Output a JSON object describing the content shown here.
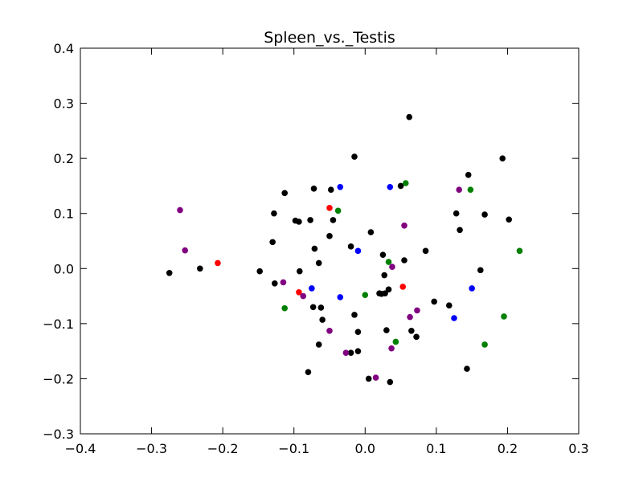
{
  "chart_data": {
    "type": "scatter",
    "title": "Spleen_vs._Testis",
    "xlabel": "",
    "ylabel": "",
    "xlim": [
      -0.4,
      0.3
    ],
    "ylim": [
      -0.3,
      0.4
    ],
    "xticks": [
      -0.4,
      -0.3,
      -0.2,
      -0.1,
      0.0,
      0.1,
      0.2,
      0.3
    ],
    "yticks": [
      -0.3,
      -0.2,
      -0.1,
      0.0,
      0.1,
      0.2,
      0.3,
      0.4
    ],
    "xtick_labels": [
      "−0.4",
      "−0.3",
      "−0.2",
      "−0.1",
      "0.0",
      "0.1",
      "0.2",
      "0.3"
    ],
    "ytick_labels": [
      "−0.3",
      "−0.2",
      "−0.1",
      "0.0",
      "0.1",
      "0.2",
      "0.3",
      "0.4"
    ],
    "grid": false,
    "legend": "none",
    "series": [
      {
        "color": "#000000",
        "points": [
          [
            0.062,
            0.275
          ],
          [
            -0.015,
            0.203
          ],
          [
            0.193,
            0.2
          ],
          [
            0.145,
            0.17
          ],
          [
            -0.113,
            0.137
          ],
          [
            -0.072,
            0.145
          ],
          [
            -0.048,
            0.143
          ],
          [
            0.05,
            0.15
          ],
          [
            -0.128,
            0.1
          ],
          [
            -0.098,
            0.087
          ],
          [
            -0.093,
            0.085
          ],
          [
            -0.077,
            0.088
          ],
          [
            -0.045,
            0.088
          ],
          [
            0.128,
            0.1
          ],
          [
            0.168,
            0.098
          ],
          [
            0.202,
            0.089
          ],
          [
            -0.13,
            0.048
          ],
          [
            -0.05,
            0.059
          ],
          [
            0.008,
            0.066
          ],
          [
            0.133,
            0.07
          ],
          [
            -0.071,
            0.036
          ],
          [
            -0.02,
            0.04
          ],
          [
            0.025,
            0.025
          ],
          [
            -0.065,
            0.01
          ],
          [
            0.055,
            0.015
          ],
          [
            0.085,
            0.032
          ],
          [
            -0.275,
            -0.008
          ],
          [
            -0.232,
            0.0
          ],
          [
            -0.148,
            -0.005
          ],
          [
            -0.092,
            -0.005
          ],
          [
            0.162,
            -0.003
          ],
          [
            -0.127,
            -0.027
          ],
          [
            0.027,
            -0.012
          ],
          [
            0.033,
            -0.038
          ],
          [
            0.02,
            -0.045
          ],
          [
            0.023,
            -0.046
          ],
          [
            0.028,
            -0.045
          ],
          [
            0.097,
            -0.06
          ],
          [
            0.118,
            -0.067
          ],
          [
            -0.073,
            -0.07
          ],
          [
            -0.062,
            -0.071
          ],
          [
            -0.015,
            -0.084
          ],
          [
            -0.06,
            -0.093
          ],
          [
            -0.01,
            -0.115
          ],
          [
            0.03,
            -0.112
          ],
          [
            0.065,
            -0.113
          ],
          [
            0.072,
            -0.124
          ],
          [
            -0.065,
            -0.138
          ],
          [
            -0.01,
            -0.15
          ],
          [
            -0.02,
            -0.153
          ],
          [
            0.143,
            -0.182
          ],
          [
            -0.08,
            -0.188
          ],
          [
            0.005,
            -0.2
          ],
          [
            0.035,
            -0.206
          ]
        ]
      },
      {
        "color": "#ff0000",
        "points": [
          [
            -0.207,
            0.01
          ],
          [
            -0.05,
            0.11
          ],
          [
            -0.093,
            -0.043
          ],
          [
            0.053,
            -0.033
          ]
        ]
      },
      {
        "color": "#0000ff",
        "points": [
          [
            -0.035,
            0.148
          ],
          [
            0.035,
            0.148
          ],
          [
            -0.01,
            0.032
          ],
          [
            -0.075,
            -0.036
          ],
          [
            -0.035,
            -0.052
          ],
          [
            0.15,
            -0.036
          ],
          [
            0.125,
            -0.09
          ]
        ]
      },
      {
        "color": "#008000",
        "points": [
          [
            0.057,
            0.155
          ],
          [
            0.148,
            0.143
          ],
          [
            -0.038,
            0.105
          ],
          [
            0.033,
            0.012
          ],
          [
            0.217,
            0.032
          ],
          [
            -0.113,
            -0.072
          ],
          [
            0.0,
            -0.048
          ],
          [
            0.195,
            -0.087
          ],
          [
            0.043,
            -0.133
          ],
          [
            0.168,
            -0.138
          ]
        ]
      },
      {
        "color": "#800080",
        "points": [
          [
            -0.26,
            0.106
          ],
          [
            -0.253,
            0.033
          ],
          [
            0.055,
            0.078
          ],
          [
            0.132,
            0.143
          ],
          [
            0.038,
            0.003
          ],
          [
            -0.115,
            -0.025
          ],
          [
            -0.087,
            -0.05
          ],
          [
            0.073,
            -0.076
          ],
          [
            0.063,
            -0.088
          ],
          [
            -0.05,
            -0.113
          ],
          [
            -0.027,
            -0.153
          ],
          [
            0.037,
            -0.145
          ],
          [
            0.015,
            -0.198
          ]
        ]
      }
    ]
  }
}
